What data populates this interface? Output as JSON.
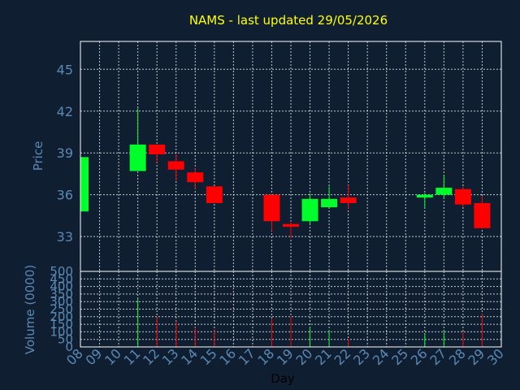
{
  "chart_data": [
    {
      "type": "candlestick",
      "title": "NAMS - last updated 29/05/2026",
      "ylabel": "Price",
      "ylim": [
        30.5,
        47
      ],
      "yticks": [
        33,
        36,
        39,
        42,
        45
      ],
      "grid": true,
      "colors": {
        "up": "#00ff2a",
        "down": "#ff0000",
        "background": "#0f1f31",
        "text": "#5a89b5",
        "title": "#ffff00"
      },
      "candles": [
        {
          "day": "08",
          "open": 34.8,
          "close": 38.7,
          "high": 38.7,
          "low": 34.8
        },
        {
          "day": "11",
          "open": 37.7,
          "close": 39.6,
          "high": 42.2,
          "low": 37.7
        },
        {
          "day": "12",
          "open": 39.6,
          "close": 38.9,
          "high": 39.6,
          "low": 38.3
        },
        {
          "day": "13",
          "open": 38.4,
          "close": 37.8,
          "high": 38.9,
          "low": 37.0
        },
        {
          "day": "14",
          "open": 37.6,
          "close": 36.9,
          "high": 37.9,
          "low": 36.4
        },
        {
          "day": "15",
          "open": 36.6,
          "close": 35.4,
          "high": 36.6,
          "low": 35.4
        },
        {
          "day": "18",
          "open": 36.0,
          "close": 34.1,
          "high": 36.0,
          "low": 33.4
        },
        {
          "day": "19",
          "open": 33.9,
          "close": 33.7,
          "high": 34.1,
          "low": 32.9
        },
        {
          "day": "20",
          "open": 34.1,
          "close": 35.7,
          "high": 36.1,
          "low": 33.9
        },
        {
          "day": "21",
          "open": 35.1,
          "close": 35.7,
          "high": 36.6,
          "low": 35.1
        },
        {
          "day": "22",
          "open": 35.8,
          "close": 35.4,
          "high": 36.7,
          "low": 35.0
        },
        {
          "day": "26",
          "open": 35.8,
          "close": 36.0,
          "high": 36.1,
          "low": 35.0
        },
        {
          "day": "27",
          "open": 36.0,
          "close": 36.5,
          "high": 37.4,
          "low": 35.7
        },
        {
          "day": "28",
          "open": 36.4,
          "close": 35.3,
          "high": 36.6,
          "low": 35.1
        },
        {
          "day": "29",
          "open": 35.4,
          "close": 33.6,
          "high": 35.9,
          "low": 33.6
        }
      ]
    },
    {
      "type": "bar",
      "xlabel": "Day",
      "ylabel": "Volume (0000)",
      "ylim": [
        0,
        500
      ],
      "yticks": [
        0,
        50,
        100,
        150,
        200,
        250,
        300,
        350,
        400,
        450,
        500
      ],
      "categories": [
        "08",
        "09",
        "10",
        "11",
        "12",
        "13",
        "14",
        "15",
        "16",
        "17",
        "18",
        "19",
        "20",
        "21",
        "22",
        "23",
        "24",
        "25",
        "26",
        "27",
        "28",
        "29",
        "30"
      ],
      "volumes": [
        {
          "day": "11",
          "value": 320,
          "dir": "up"
        },
        {
          "day": "12",
          "value": 200,
          "dir": "down"
        },
        {
          "day": "13",
          "value": 170,
          "dir": "down"
        },
        {
          "day": "14",
          "value": 130,
          "dir": "down"
        },
        {
          "day": "15",
          "value": 110,
          "dir": "down"
        },
        {
          "day": "18",
          "value": 190,
          "dir": "down"
        },
        {
          "day": "19",
          "value": 200,
          "dir": "down"
        },
        {
          "day": "20",
          "value": 130,
          "dir": "up"
        },
        {
          "day": "21",
          "value": 110,
          "dir": "up"
        },
        {
          "day": "22",
          "value": 55,
          "dir": "down"
        },
        {
          "day": "26",
          "value": 90,
          "dir": "up"
        },
        {
          "day": "27",
          "value": 100,
          "dir": "up"
        },
        {
          "day": "28",
          "value": 100,
          "dir": "down"
        },
        {
          "day": "29",
          "value": 220,
          "dir": "down"
        }
      ]
    }
  ]
}
